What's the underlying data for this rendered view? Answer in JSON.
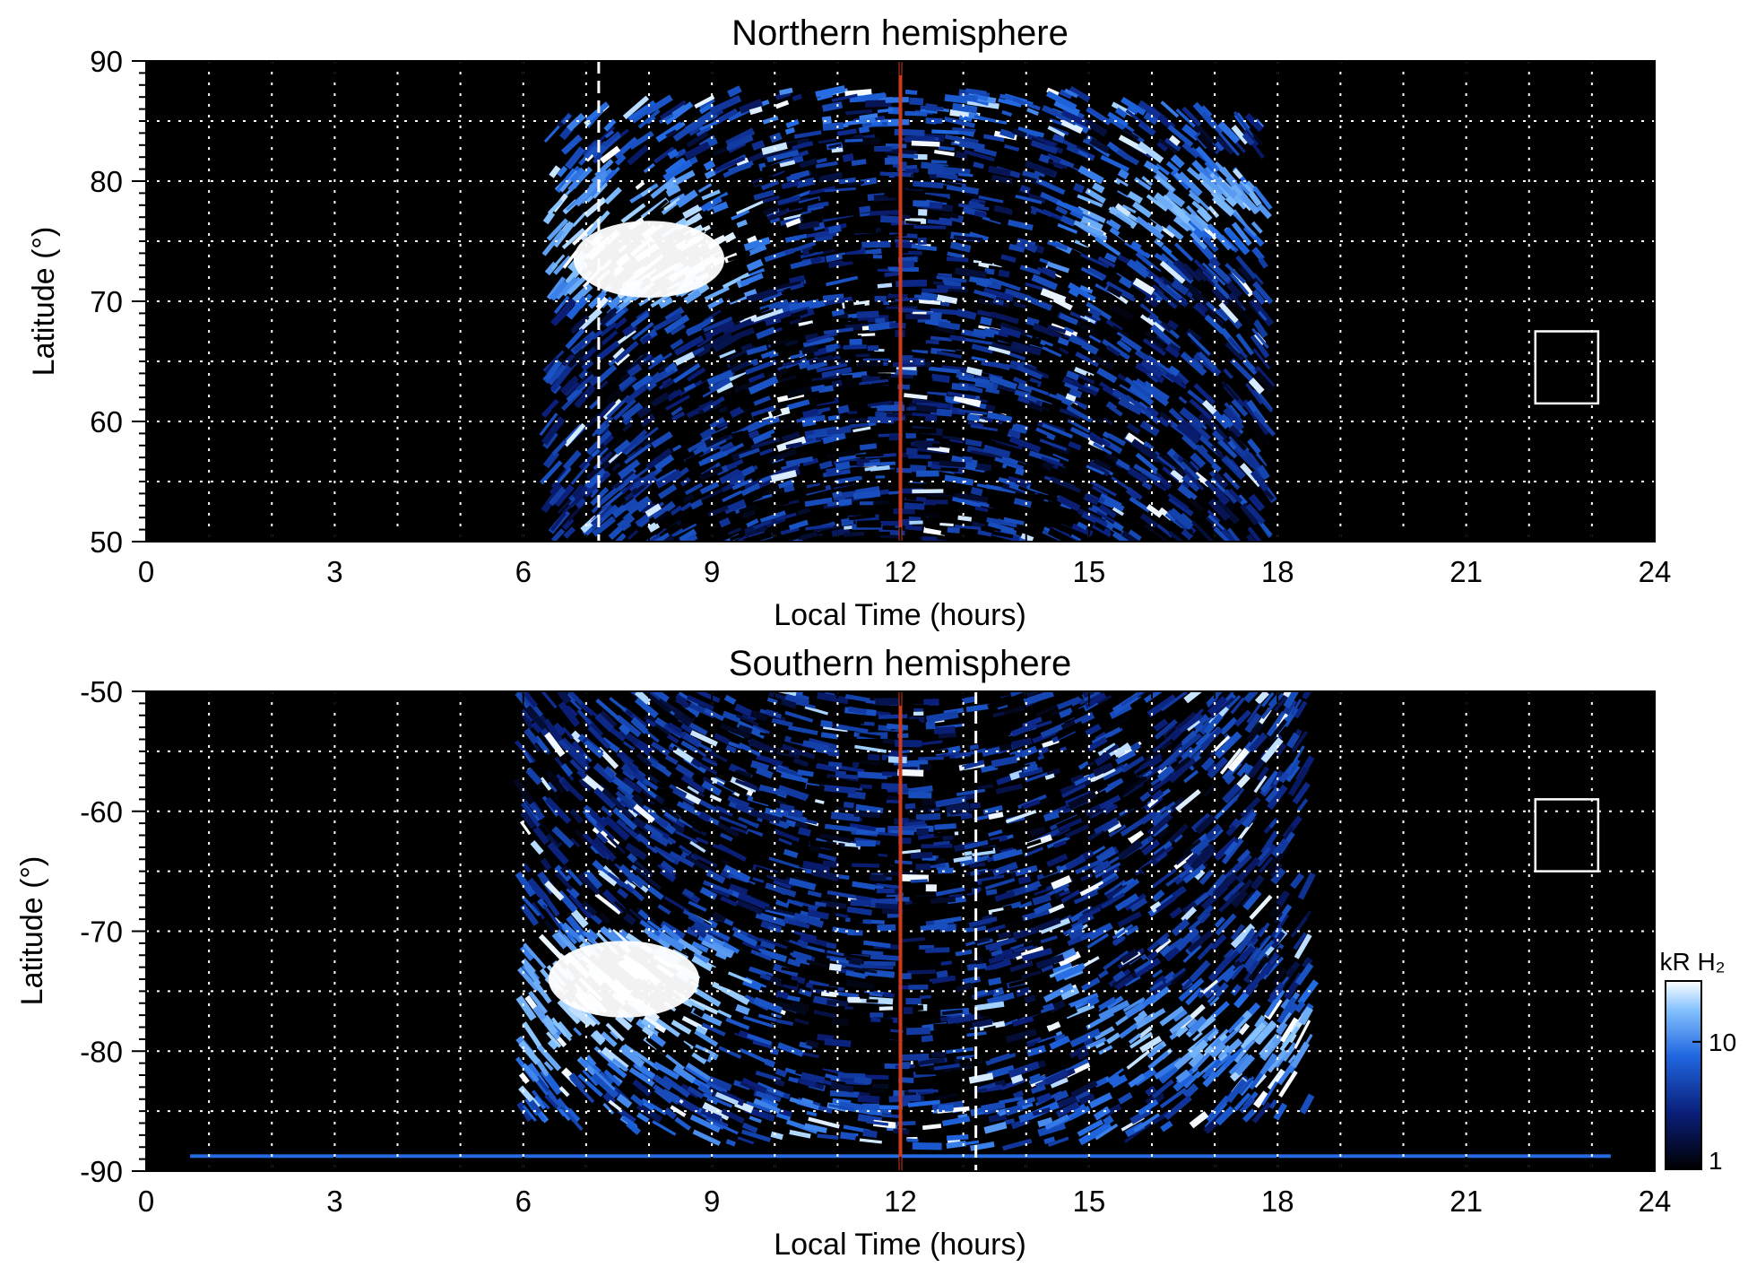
{
  "chart_data": [
    {
      "type": "heatmap",
      "title": "Northern hemisphere",
      "xlabel": "Local Time (hours)",
      "ylabel": "Latitude (°)",
      "xlim": [
        0,
        24
      ],
      "ylim": [
        50,
        90
      ],
      "x_major_ticks": [
        0,
        3,
        6,
        9,
        12,
        15,
        18,
        21,
        24
      ],
      "x_tick_labels": [
        "0",
        "3",
        "6",
        "9",
        "12",
        "15",
        "18",
        "21",
        "24"
      ],
      "y_major_ticks": [
        50,
        60,
        70,
        80,
        90
      ],
      "y_tick_labels": [
        "50",
        "60",
        "70",
        "80",
        "90"
      ],
      "grid": true,
      "grid_x_spacing": 1,
      "grid_y_spacing": 5,
      "colormap": "black-blue-white",
      "coverage": {
        "lt_start": 6.4,
        "lt_end": 17.8,
        "lat_top": 87.5
      },
      "bright_regions": [
        {
          "lt": 8.0,
          "lat": 73.5,
          "intensity": 30
        }
      ],
      "main_oval_band": {
        "colat_center": 16,
        "intensity": 12
      },
      "reference_lines": [
        {
          "lt": 12,
          "style": "solid",
          "color": "#cc3a1a"
        },
        {
          "lt": 7.2,
          "style": "dashed",
          "color": "#ffffff"
        }
      ],
      "box": {
        "lt": [
          22.1,
          23.1
        ],
        "lat": [
          61.5,
          67.5
        ]
      }
    },
    {
      "type": "heatmap",
      "title": "Southern hemisphere",
      "xlabel": "Local Time (hours)",
      "ylabel": "Latitude (°)",
      "xlim": [
        0,
        24
      ],
      "ylim": [
        -90,
        -50
      ],
      "x_major_ticks": [
        0,
        3,
        6,
        9,
        12,
        15,
        18,
        21,
        24
      ],
      "x_tick_labels": [
        "0",
        "3",
        "6",
        "9",
        "12",
        "15",
        "18",
        "21",
        "24"
      ],
      "y_major_ticks": [
        -90,
        -80,
        -70,
        -60,
        -50
      ],
      "y_tick_labels": [
        "-90",
        "-80",
        "-70",
        "-60",
        "-50"
      ],
      "grid": true,
      "grid_x_spacing": 1,
      "grid_y_spacing": 5,
      "colormap": "black-blue-white",
      "coverage": {
        "lt_start": 6.0,
        "lt_end": 18.5,
        "lat_bottom": -88
      },
      "bright_regions": [
        {
          "lt": 7.6,
          "lat": -74,
          "intensity": 30
        }
      ],
      "main_oval_band": {
        "colat_center": 15,
        "intensity": 12
      },
      "reference_lines": [
        {
          "lt": 12,
          "style": "solid",
          "color": "#cc3a1a"
        },
        {
          "lt": 13.2,
          "style": "dashed",
          "color": "#ffffff"
        }
      ],
      "box": {
        "lt": [
          22.1,
          23.1
        ],
        "lat": [
          -65,
          -59
        ]
      },
      "colorbar": {
        "label": "kR H₂",
        "scale": "log",
        "range": [
          1,
          30
        ],
        "tick_values": [
          1,
          10
        ],
        "tick_labels": [
          "1",
          "10"
        ]
      }
    }
  ]
}
